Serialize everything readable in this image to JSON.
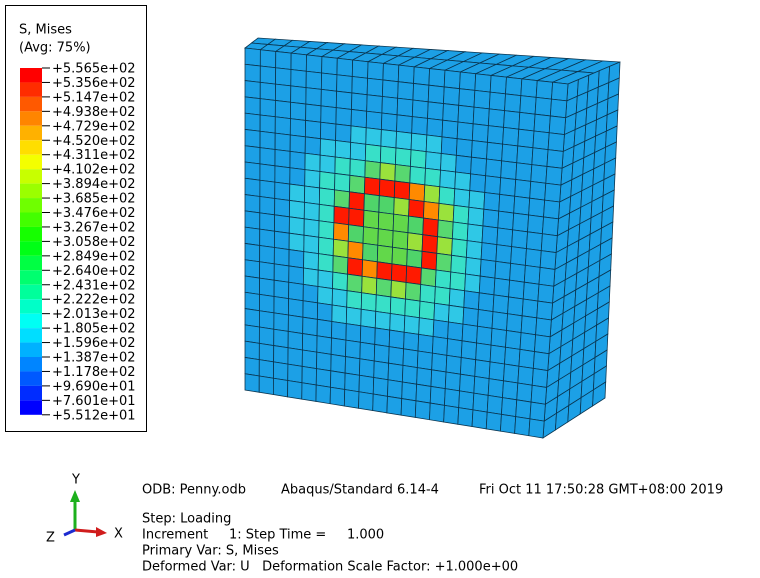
{
  "legend": {
    "title": "S, Mises",
    "subtitle": "(Avg: 75%)",
    "labels": [
      "+5.565e+02",
      "+5.356e+02",
      "+5.147e+02",
      "+4.938e+02",
      "+4.729e+02",
      "+4.520e+02",
      "+4.311e+02",
      "+4.102e+02",
      "+3.894e+02",
      "+3.685e+02",
      "+3.476e+02",
      "+3.267e+02",
      "+3.058e+02",
      "+2.849e+02",
      "+2.640e+02",
      "+2.431e+02",
      "+2.222e+02",
      "+2.013e+02",
      "+1.805e+02",
      "+1.596e+02",
      "+1.387e+02",
      "+1.178e+02",
      "+9.690e+01",
      "+7.601e+01",
      "+5.512e+01"
    ]
  },
  "triad": {
    "x": "X",
    "y": "Y",
    "z": "Z"
  },
  "info": {
    "odb": "ODB: Penny.odb",
    "solver": "Abaqus/Standard 6.14-4",
    "date": "Fri Oct 11 17:50:28 GMT+08:00 2019",
    "step": "Step: Loading",
    "increment": "Increment     1: Step Time =     1.000",
    "primary": "Primary Var: S, Mises",
    "deformed": "Deformed Var: U   Deformation Scale Factor: +1.000e+00"
  }
}
